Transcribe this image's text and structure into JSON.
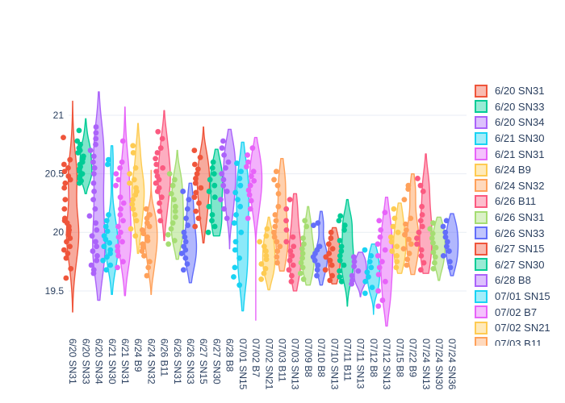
{
  "colors": {
    "background": "#ffffff",
    "grid": "#e9edf4",
    "tick_text": "#2a3f5f",
    "legend_text": "#2a3f5f",
    "palette": [
      "#ef553b",
      "#00cc96",
      "#ab63fa",
      "#19d3f3",
      "#e763f9",
      "#fecb52",
      "#ffa15a",
      "#fb5a80",
      "#a5dd72",
      "#636efa"
    ]
  },
  "legend": {
    "visible_count": 17
  },
  "chart_data": {
    "type": "violin",
    "title": "",
    "xlabel": "",
    "ylabel": "",
    "grid": true,
    "legend_position": "right",
    "points_mode": "all-points-left-jitter",
    "y_axis": {
      "tick_labels": [
        "19.5",
        "20",
        "20.5",
        "21"
      ],
      "tick_values": [
        19.5,
        20,
        20.5,
        21
      ],
      "range": [
        19.1,
        21.4
      ]
    },
    "x_categories": [
      "6/20 SN31",
      "6/20 SN33",
      "6/20 SN34",
      "6/21 SN30",
      "6/21 SN31",
      "6/24 B9",
      "6/24 SN32",
      "6/26 B11",
      "6/26 SN31",
      "6/26 SN33",
      "6/27 SN15",
      "6/27 SN30",
      "6/28 B8",
      "07/01 SN15",
      "07/02 B7",
      "07/02 SN21",
      "07/03 B11",
      "07/03 SN13",
      "07/09 B8",
      "07/10 B8",
      "07/10 SN13",
      "07/11 B11",
      "07/11 SN13",
      "07/12 B8",
      "07/12 SN13",
      "07/15 B8",
      "07/22 B9",
      "07/24 SN13",
      "07/24 SN30",
      "07/24 SN36"
    ],
    "series": [
      {
        "name": "6/20 SN31",
        "color": "#ef553b",
        "violin_range": [
          19.32,
          21.12
        ],
        "points": [
          20.81,
          20.62,
          20.58,
          20.55,
          20.52,
          20.48,
          20.45,
          20.42,
          20.38,
          20.28,
          20.2,
          20.12,
          20.1,
          20.08,
          20.05,
          20.02,
          20.0,
          19.98,
          19.95,
          19.92,
          19.88,
          19.85,
          19.82,
          19.78,
          19.69,
          19.61
        ]
      },
      {
        "name": "6/20 SN33",
        "color": "#00cc96",
        "violin_range": [
          20.33,
          20.97
        ],
        "points": [
          20.87,
          20.78,
          20.75,
          20.72,
          20.7,
          20.68,
          20.65,
          20.63,
          20.6,
          20.58,
          20.56,
          20.54,
          20.52,
          20.5,
          20.48,
          20.46,
          20.44,
          20.42
        ]
      },
      {
        "name": "6/20 SN34",
        "color": "#ab63fa",
        "violin_range": [
          19.42,
          21.2
        ],
        "points": [
          20.9,
          20.85,
          20.8,
          20.75,
          20.7,
          20.65,
          20.6,
          20.55,
          20.5,
          20.42,
          20.35,
          20.28,
          20.2,
          20.14,
          20.08,
          20.02,
          19.97,
          19.92,
          19.88,
          19.84,
          19.8,
          19.76,
          19.72,
          19.68,
          19.65
        ]
      },
      {
        "name": "6/21 SN30",
        "color": "#19d3f3",
        "violin_range": [
          19.47,
          20.74
        ],
        "points": [
          20.62,
          20.58,
          20.15,
          20.1,
          20.05,
          20.01,
          19.97,
          19.94,
          19.91,
          19.88,
          19.85,
          19.82,
          19.79,
          19.76,
          19.72,
          19.68
        ]
      },
      {
        "name": "6/21 SN31",
        "color": "#e763f9",
        "violin_range": [
          19.46,
          21.07
        ],
        "points": [
          20.78,
          20.6,
          20.55,
          20.5,
          20.45,
          20.4,
          20.3,
          20.25,
          20.2,
          20.15,
          20.1,
          20.05,
          20.0,
          19.96,
          19.92,
          19.88,
          19.84,
          19.8,
          19.75,
          19.7
        ]
      },
      {
        "name": "6/24 B9",
        "color": "#fecb52",
        "violin_range": [
          19.82,
          20.93
        ],
        "points": [
          20.74,
          20.68,
          20.55,
          20.5,
          20.45,
          20.42,
          20.38,
          20.35,
          20.32,
          20.28,
          20.24,
          20.2,
          20.15,
          20.1,
          20.03,
          19.97
        ]
      },
      {
        "name": "6/24 SN32",
        "color": "#ffa15a",
        "violin_range": [
          19.47,
          20.53
        ],
        "points": [
          20.2,
          20.15,
          20.12,
          20.08,
          20.05,
          20.02,
          19.99,
          19.96,
          19.93,
          19.9,
          19.87,
          19.84,
          19.8,
          19.75,
          19.7,
          19.63
        ]
      },
      {
        "name": "6/26 B11",
        "color": "#fb5a80",
        "violin_range": [
          19.93,
          21.04
        ],
        "points": [
          20.86,
          20.8,
          20.72,
          20.68,
          20.63,
          20.58,
          20.55,
          20.52,
          20.48,
          20.45,
          20.42,
          20.38,
          20.35,
          20.3,
          20.25,
          20.18,
          20.1
        ]
      },
      {
        "name": "6/26 SN31",
        "color": "#a5dd72",
        "violin_range": [
          19.77,
          20.7
        ],
        "points": [
          20.5,
          20.45,
          20.4,
          20.33,
          20.28,
          20.22,
          20.18,
          20.13,
          20.08,
          20.03,
          19.98,
          19.93,
          19.9
        ]
      },
      {
        "name": "6/26 SN33",
        "color": "#636efa",
        "violin_range": [
          19.57,
          20.42
        ],
        "points": [
          20.35,
          20.28,
          20.2,
          20.12,
          20.06,
          20.0,
          19.96,
          19.92,
          19.88,
          19.85,
          19.82,
          19.78,
          19.73,
          19.68
        ]
      },
      {
        "name": "6/27 SN15",
        "color": "#ef553b",
        "violin_range": [
          19.91,
          20.9
        ],
        "points": [
          20.7,
          20.64,
          20.58,
          20.54,
          20.5,
          20.46,
          20.42,
          20.38,
          20.34,
          20.3,
          20.25,
          20.18,
          20.12,
          20.05
        ]
      },
      {
        "name": "6/27 SN30",
        "color": "#00cc96",
        "violin_range": [
          19.97,
          20.71
        ],
        "points": [
          20.6,
          20.55,
          20.5,
          20.45,
          20.4,
          20.35,
          20.3,
          20.22,
          20.15,
          20.1,
          20.05,
          20.0
        ]
      },
      {
        "name": "6/28 B8",
        "color": "#ab63fa",
        "violin_range": [
          19.86,
          20.88
        ],
        "points": [
          20.78,
          20.72,
          20.66,
          20.6,
          20.55,
          20.5,
          20.45,
          20.4,
          20.35,
          20.28,
          20.2,
          20.12
        ]
      },
      {
        "name": "07/01 SN15",
        "color": "#19d3f3",
        "violin_range": [
          19.33,
          20.77
        ],
        "points": [
          20.59,
          20.52,
          20.46,
          20.4,
          20.34,
          20.28,
          20.22,
          20.15,
          20.08,
          20.0,
          19.92,
          19.85,
          19.78,
          19.7,
          19.62,
          19.55
        ]
      },
      {
        "name": "07/02 B7",
        "color": "#e763f9",
        "violin_range": [
          19.25,
          20.81
        ],
        "points": [
          20.72,
          20.66,
          20.6,
          20.56,
          20.52,
          20.48,
          20.44,
          20.4,
          20.36,
          20.32,
          20.27,
          20.2,
          20.12
        ]
      },
      {
        "name": "07/02 SN21",
        "color": "#fecb52",
        "violin_range": [
          19.51,
          20.13
        ],
        "points": [
          20.03,
          19.97,
          19.92,
          19.88,
          19.84,
          19.8,
          19.77,
          19.73,
          19.69,
          19.65,
          19.6
        ]
      },
      {
        "name": "07/03 B11",
        "color": "#ffa15a",
        "violin_range": [
          19.67,
          20.63
        ],
        "points": [
          20.52,
          20.45,
          20.4,
          20.33,
          20.22,
          20.15,
          20.1,
          20.05,
          20.0,
          19.96,
          19.92,
          19.88,
          19.84,
          19.79,
          19.74
        ]
      },
      {
        "name": "07/03 SN13",
        "color": "#fb5a80",
        "violin_range": [
          19.5,
          20.33
        ],
        "points": [
          20.28,
          20.2,
          20.1,
          20.02,
          19.96,
          19.92,
          19.88,
          19.84,
          19.8,
          19.76,
          19.72,
          19.68,
          19.63,
          19.58
        ]
      },
      {
        "name": "07/09 B8",
        "color": "#a5dd72",
        "violin_range": [
          19.55,
          20.22
        ],
        "points": [
          20.1,
          20.05,
          19.95,
          19.9,
          19.86,
          19.82,
          19.78,
          19.74,
          19.7,
          19.65,
          19.6
        ]
      },
      {
        "name": "07/10 B8",
        "color": "#636efa",
        "violin_range": [
          19.55,
          20.18
        ],
        "points": [
          20.08,
          20.06,
          19.88,
          19.85,
          19.82,
          19.79,
          19.76,
          19.72,
          19.68,
          19.63
        ]
      },
      {
        "name": "07/10 SN13",
        "color": "#ef553b",
        "violin_range": [
          19.56,
          20.04
        ],
        "points": [
          20.0,
          19.95,
          19.9,
          19.86,
          19.82,
          19.79,
          19.76,
          19.72,
          19.68,
          19.63,
          19.59
        ]
      },
      {
        "name": "07/11 B11",
        "color": "#00cc96",
        "violin_range": [
          19.37,
          20.28
        ],
        "points": [
          20.14,
          20.1,
          20.06,
          20.02,
          19.93,
          19.88,
          19.84,
          19.8,
          19.76,
          19.72,
          19.67,
          19.62,
          19.58
        ]
      },
      {
        "name": "07/11 SN13",
        "color": "#ab63fa",
        "violin_range": [
          19.45,
          19.83
        ],
        "points": [
          19.79,
          19.75,
          19.71,
          19.67,
          19.63,
          19.59,
          19.56
        ]
      },
      {
        "name": "07/12 B8",
        "color": "#19d3f3",
        "violin_range": [
          19.3,
          19.9
        ],
        "points": [
          19.85,
          19.8,
          19.75,
          19.7,
          19.66,
          19.62,
          19.58,
          19.53,
          19.48
        ]
      },
      {
        "name": "07/12 SN13",
        "color": "#e763f9",
        "violin_range": [
          19.2,
          20.3
        ],
        "points": [
          20.17,
          20.1,
          20.02,
          19.96,
          19.9,
          19.85,
          19.8,
          19.75,
          19.7,
          19.64,
          19.58,
          19.5,
          19.42,
          19.37
        ]
      },
      {
        "name": "07/15 B8",
        "color": "#fecb52",
        "violin_range": [
          19.65,
          20.25
        ],
        "points": [
          20.2,
          20.12,
          20.05,
          20.0,
          19.96,
          19.92,
          19.88,
          19.84,
          19.8,
          19.75,
          19.7
        ]
      },
      {
        "name": "07/22 B9",
        "color": "#ffa15a",
        "violin_range": [
          19.64,
          20.5
        ],
        "points": [
          20.4,
          20.37,
          20.28,
          20.12,
          20.07,
          20.02,
          19.98,
          19.94,
          19.9,
          19.86,
          19.82,
          19.77,
          19.72
        ]
      },
      {
        "name": "07/24 SN13",
        "color": "#fb5a80",
        "violin_range": [
          19.65,
          20.67
        ],
        "points": [
          20.46,
          20.4,
          20.35,
          20.22,
          20.15,
          20.1,
          20.05,
          20.0,
          19.95,
          19.9,
          19.85,
          19.8,
          19.74,
          19.68
        ]
      },
      {
        "name": "07/24 SN30",
        "color": "#a5dd72",
        "violin_range": [
          19.59,
          20.13
        ],
        "points": [
          20.08,
          20.03,
          19.99,
          19.95,
          19.91,
          19.87,
          19.83,
          19.79,
          19.74,
          19.69
        ]
      },
      {
        "name": "07/24 SN36",
        "color": "#636efa",
        "violin_range": [
          19.63,
          20.16
        ],
        "points": [
          20.1,
          20.05,
          20.0,
          19.96,
          19.92,
          19.88,
          19.84,
          19.8,
          19.75,
          19.7
        ]
      }
    ]
  }
}
